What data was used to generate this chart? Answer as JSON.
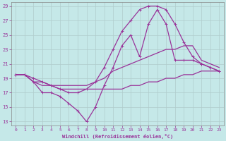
{
  "xlabel": "Windchill (Refroidissement éolien,°C)",
  "xlim": [
    -0.5,
    23.5
  ],
  "ylim": [
    12.5,
    29.5
  ],
  "xticks": [
    0,
    1,
    2,
    3,
    4,
    5,
    6,
    7,
    8,
    9,
    10,
    11,
    12,
    13,
    14,
    15,
    16,
    17,
    18,
    19,
    20,
    21,
    22,
    23
  ],
  "yticks": [
    13,
    15,
    17,
    19,
    21,
    23,
    25,
    27,
    29
  ],
  "bg_color": "#c5e8e8",
  "grid_color": "#b0cccc",
  "line_color": "#993399",
  "curves": [
    {
      "x": [
        0,
        1,
        2,
        3,
        4,
        5,
        6,
        7,
        8,
        9,
        10,
        11,
        12,
        13,
        14,
        15,
        16,
        17,
        18,
        19,
        20,
        21,
        22,
        23
      ],
      "y": [
        19.5,
        19.5,
        18.5,
        18.5,
        18.0,
        17.5,
        17.5,
        17.5,
        17.5,
        17.5,
        17.5,
        17.5,
        17.5,
        18.0,
        18.0,
        18.5,
        18.5,
        19.0,
        19.0,
        19.5,
        19.5,
        20.0,
        20.0,
        20.0
      ],
      "lw": 0.9,
      "marker": false
    },
    {
      "x": [
        0,
        1,
        2,
        3,
        4,
        5,
        6,
        7,
        8,
        9,
        10,
        11,
        12,
        13,
        14,
        15,
        16,
        17,
        18,
        19,
        20,
        21,
        22,
        23
      ],
      "y": [
        19.5,
        19.5,
        18.5,
        18.0,
        18.0,
        18.0,
        18.0,
        18.0,
        18.0,
        18.5,
        19.0,
        20.0,
        20.5,
        21.0,
        21.5,
        22.0,
        22.5,
        23.0,
        23.0,
        23.5,
        23.5,
        21.5,
        21.0,
        20.5
      ],
      "lw": 0.9,
      "marker": false
    },
    {
      "x": [
        0,
        1,
        2,
        3,
        4,
        5,
        6,
        7,
        8,
        9,
        10,
        11,
        12,
        13,
        14,
        15,
        16,
        17,
        18,
        19,
        20,
        21,
        22,
        23
      ],
      "y": [
        19.5,
        19.5,
        19.0,
        18.5,
        18.0,
        17.5,
        17.0,
        17.0,
        17.5,
        18.5,
        20.5,
        23.0,
        25.5,
        27.0,
        28.5,
        29.0,
        29.0,
        28.5,
        26.5,
        24.0,
        22.0,
        21.0,
        20.5,
        20.0
      ],
      "lw": 0.9,
      "marker": true
    },
    {
      "x": [
        0,
        1,
        2,
        3,
        4,
        5,
        6,
        7,
        8,
        9,
        10,
        11,
        12,
        13,
        14,
        15,
        16,
        17,
        18,
        19,
        20,
        21,
        22,
        23
      ],
      "y": [
        19.5,
        19.5,
        18.5,
        17.0,
        17.0,
        16.5,
        15.5,
        14.5,
        13.0,
        15.0,
        18.0,
        20.5,
        23.5,
        25.0,
        22.0,
        26.5,
        28.5,
        26.5,
        21.5,
        21.5,
        21.5,
        21.0,
        20.5,
        20.0
      ],
      "lw": 0.9,
      "marker": true
    }
  ]
}
